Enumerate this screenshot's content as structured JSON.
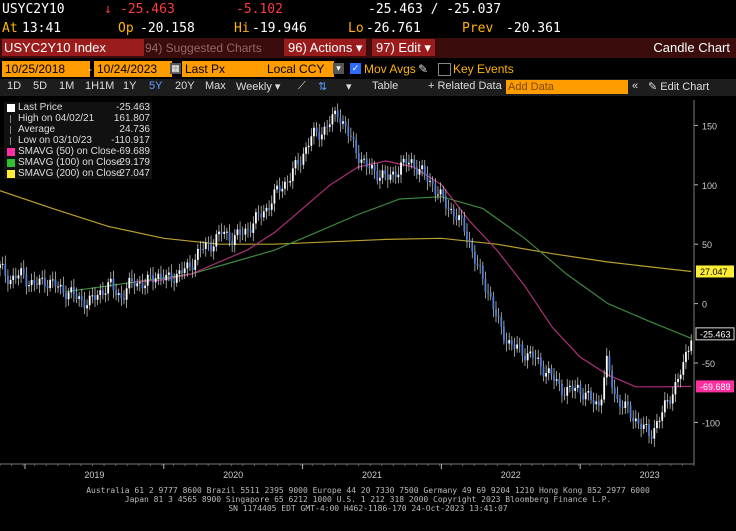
{
  "quote": {
    "ticker": "USYC2Y10",
    "arrow": "↓",
    "last": "-25.463",
    "change": "-5.102",
    "bid_ask": "-25.463 / -25.037",
    "at_label": "At",
    "time": "13:41",
    "open_label": "Op",
    "open": "-20.158",
    "high_label": "Hi",
    "high": "-19.946",
    "low_label": "Lo",
    "low": "-26.761",
    "prev_label": "Prev",
    "prev": "-20.361"
  },
  "toolbar": {
    "security": "USYC2Y10 Index",
    "suggested": "94) Suggested Charts",
    "actions": "96) Actions ▾",
    "edit": "97) Edit ▾",
    "title": "Candle Chart"
  },
  "settings": {
    "start_date": "10/25/2018",
    "end_date": "10/24/2023",
    "price_field": "Last Px",
    "currency": "Local CCY",
    "mov_avgs": "Mov Avgs",
    "key_events": "Key Events"
  },
  "timeframes": [
    "1D",
    "5D",
    "1M",
    "1H1M",
    "1Y",
    "5Y",
    "20Y",
    "Max"
  ],
  "selected_timeframe": "5Y",
  "periodicity": "Weekly ▾",
  "tools": {
    "table": "Table",
    "related": "+ Related Data",
    "add_data": "Add Data",
    "edit_chart": "✎ Edit Chart"
  },
  "legend": [
    {
      "name": "Last Price",
      "value": "-25.463",
      "color": "#ffffff"
    },
    {
      "name": "High on 04/02/21",
      "value": "161.807",
      "color": ""
    },
    {
      "name": "Average",
      "value": "24.736",
      "color": ""
    },
    {
      "name": "Low on 03/10/23",
      "value": "-110.917",
      "color": ""
    },
    {
      "name": "SMAVG (50)  on Close",
      "value": "-69.689",
      "color": "#ff2fa0"
    },
    {
      "name": "SMAVG (100)  on Close",
      "value": "-29.179",
      "color": "#2fbf2f"
    },
    {
      "name": "SMAVG (200)  on Close",
      "value": "27.047",
      "color": "#ffee33"
    }
  ],
  "colors": {
    "price": "#4f7fd6",
    "ma50": "#b0307a",
    "ma100": "#3c8a3c",
    "ma200": "#b8a030"
  },
  "chart_data": {
    "type": "line",
    "x_tick_labels": [
      "2019",
      "2020",
      "2021",
      "2022",
      "2023"
    ],
    "y_tick_labels": [
      "150",
      "100",
      "50",
      "0",
      "-50",
      "-100"
    ],
    "ylim": [
      -135,
      168
    ],
    "xlim": [
      2018.82,
      2023.82
    ],
    "grid": false,
    "legend_position": "top-left",
    "price_series": {
      "x": [
        2018.82,
        2018.9,
        2018.98,
        2019.06,
        2019.14,
        2019.22,
        2019.3,
        2019.38,
        2019.46,
        2019.54,
        2019.62,
        2019.7,
        2019.78,
        2019.86,
        2019.94,
        2020.02,
        2020.1,
        2020.18,
        2020.26,
        2020.34,
        2020.42,
        2020.5,
        2020.58,
        2020.66,
        2020.74,
        2020.82,
        2020.9,
        2020.98,
        2021.06,
        2021.14,
        2021.22,
        2021.25,
        2021.3,
        2021.38,
        2021.46,
        2021.54,
        2021.62,
        2021.7,
        2021.78,
        2021.86,
        2021.94,
        2022.02,
        2022.1,
        2022.18,
        2022.26,
        2022.34,
        2022.42,
        2022.5,
        2022.58,
        2022.66,
        2022.74,
        2022.82,
        2022.9,
        2022.98,
        2023.06,
        2023.14,
        2023.19,
        2023.26,
        2023.34,
        2023.42,
        2023.5,
        2023.58,
        2023.66,
        2023.74,
        2023.8
      ],
      "y": [
        30,
        20,
        25,
        15,
        20,
        15,
        10,
        5,
        0,
        10,
        15,
        5,
        20,
        15,
        25,
        20,
        25,
        30,
        45,
        50,
        60,
        55,
        60,
        70,
        80,
        95,
        105,
        120,
        140,
        145,
        155,
        161.8,
        150,
        130,
        115,
        110,
        105,
        115,
        120,
        110,
        100,
        85,
        75,
        60,
        30,
        10,
        -20,
        -35,
        -40,
        -45,
        -55,
        -65,
        -75,
        -70,
        -80,
        -85,
        -50,
        -80,
        -90,
        -100,
        -110.9,
        -95,
        -75,
        -55,
        -25.463
      ]
    },
    "sma50": {
      "x": [
        2019.78,
        2020.0,
        2020.2,
        2020.4,
        2020.6,
        2020.8,
        2021.0,
        2021.2,
        2021.4,
        2021.6,
        2021.8,
        2022.0,
        2022.2,
        2022.4,
        2022.6,
        2022.8,
        2023.0,
        2023.2,
        2023.4,
        2023.6,
        2023.8
      ],
      "y": [
        18,
        20,
        25,
        35,
        45,
        60,
        80,
        100,
        115,
        120,
        115,
        100,
        70,
        45,
        15,
        -20,
        -45,
        -60,
        -70,
        -70,
        -69.689
      ]
    },
    "sma100": {
      "x": [
        2019.3,
        2019.6,
        2019.9,
        2020.2,
        2020.5,
        2020.8,
        2021.1,
        2021.4,
        2021.7,
        2022.0,
        2022.3,
        2022.6,
        2022.9,
        2023.2,
        2023.5,
        2023.8
      ],
      "y": [
        10,
        15,
        20,
        25,
        35,
        45,
        60,
        75,
        88,
        90,
        80,
        55,
        25,
        0,
        -15,
        -29.179
      ]
    },
    "sma200": {
      "x": [
        2018.82,
        2019.2,
        2019.6,
        2020.0,
        2020.4,
        2020.8,
        2021.2,
        2021.6,
        2022.0,
        2022.4,
        2022.8,
        2023.2,
        2023.8
      ],
      "y": [
        95,
        80,
        65,
        55,
        50,
        50,
        52,
        54,
        55,
        50,
        42,
        35,
        27.047
      ]
    },
    "last_value_labels": [
      {
        "value": "27.047",
        "series": "sma200"
      },
      {
        "value": "-25.463",
        "series": "price"
      },
      {
        "value": "-69.689",
        "series": "sma50"
      }
    ]
  },
  "footer": {
    "line1": "Australia 61 2 9777 8600 Brazil 5511 2395 9000 Europe 44 20 7330 7500 Germany 49 69 9204 1210 Hong Kong 852 2977 6000",
    "line2": "Japan 81 3 4565 8900        Singapore 65 6212 1000        U.S. 1 212 318 2000        Copyright 2023 Bloomberg Finance L.P.",
    "line3": "SN 1174405 EDT  GMT-4:00 H462-1186-170 24-Oct-2023 13:41:07"
  }
}
